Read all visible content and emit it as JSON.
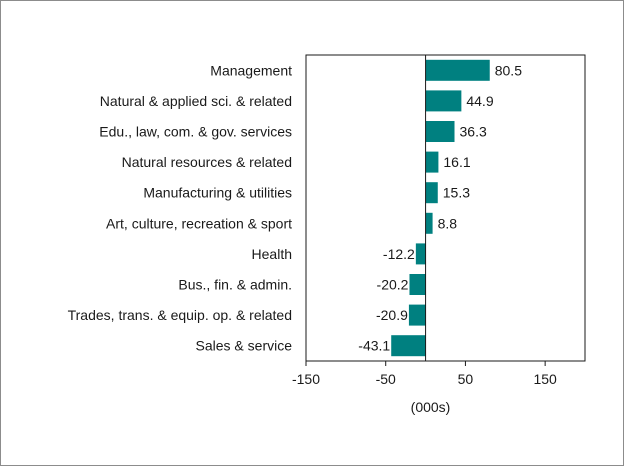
{
  "chart_data": {
    "type": "bar",
    "orientation": "horizontal",
    "categories": [
      "Management",
      "Natural & applied sci. & related",
      "Edu., law, com. & gov. services",
      "Natural resources & related",
      "Manufacturing & utilities",
      "Art, culture, recreation & sport",
      "Health",
      "Bus., fin. & admin.",
      "Trades, trans. & equip. op. & related",
      "Sales & service"
    ],
    "values": [
      80.5,
      44.9,
      36.3,
      16.1,
      15.3,
      8.8,
      -12.2,
      -20.2,
      -20.9,
      -43.1
    ],
    "value_labels": [
      "80.5",
      "44.9",
      "36.3",
      "16.1",
      "15.3",
      "8.8",
      "-12.2",
      "-20.2",
      "-20.9",
      "-43.1"
    ],
    "xlim": [
      -150,
      200
    ],
    "xticks": [
      -150,
      -50,
      50,
      150
    ],
    "xtick_labels": [
      "-150",
      "-50",
      "50",
      "150"
    ],
    "xlabel": "(000s)",
    "bar_color": "#008080",
    "grid": false,
    "legend": false
  }
}
